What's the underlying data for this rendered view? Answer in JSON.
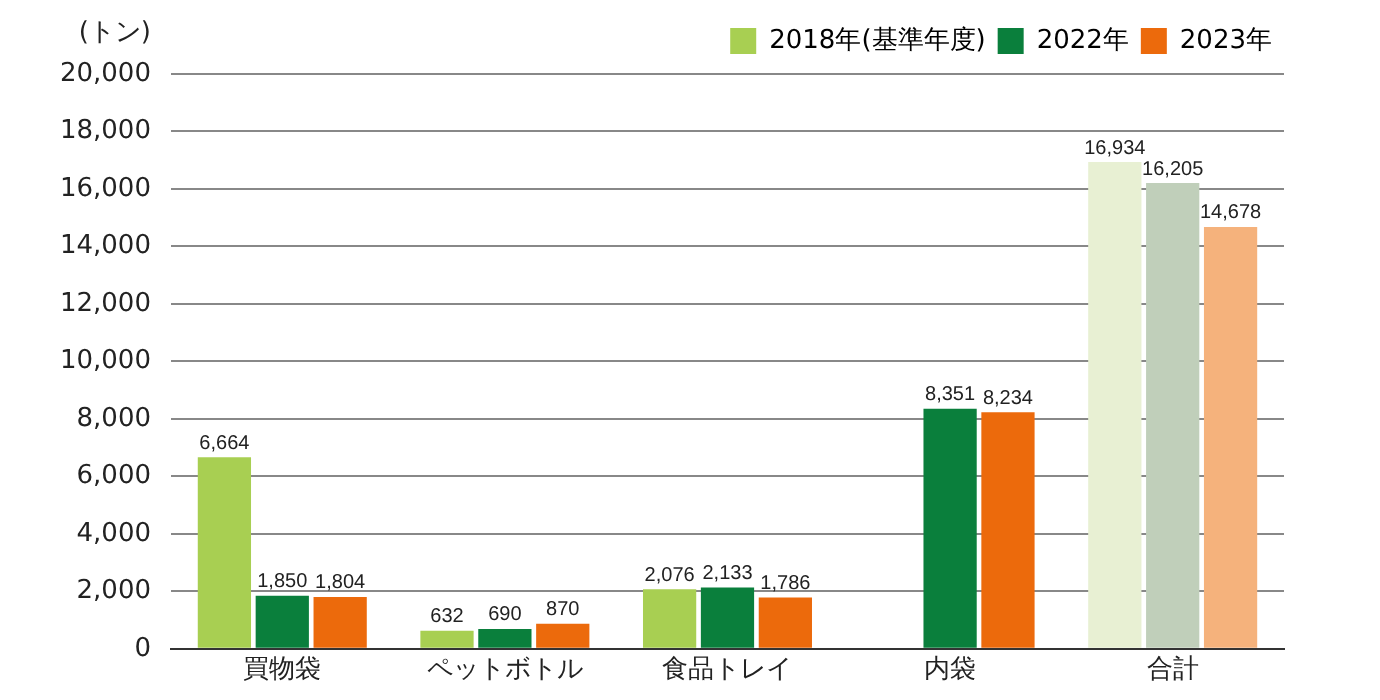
{
  "chart_data": {
    "type": "bar",
    "ylabel": "(トン)",
    "categories": [
      "買物袋",
      "ペットボトル",
      "食品トレイ",
      "内袋",
      "合計"
    ],
    "series": [
      {
        "name": "2018年(基準年度)",
        "color": "#a8cf52",
        "colors": [
          "#a8cf52",
          "#a8cf52",
          "#a8cf52",
          "#a8cf52",
          "#e8f0d3"
        ],
        "values": [
          6664,
          632,
          2076,
          null,
          16934
        ],
        "value_labels": [
          "6,664",
          "632",
          "2,076",
          null,
          "16,934"
        ]
      },
      {
        "name": "2022年",
        "color": "#0a7f3c",
        "colors": [
          "#0a7f3c",
          "#0a7f3c",
          "#0a7f3c",
          "#0a7f3c",
          "#c0cfba"
        ],
        "values": [
          1850,
          690,
          2133,
          8351,
          16205
        ],
        "value_labels": [
          "1,850",
          "690",
          "2,133",
          "8,351",
          "16,205"
        ]
      },
      {
        "name": "2023年",
        "color": "#ec6a0c",
        "colors": [
          "#ec6a0c",
          "#ec6a0c",
          "#ec6a0c",
          "#ec6a0c",
          "#f5b27c"
        ],
        "values": [
          1804,
          870,
          1786,
          8234,
          14678
        ],
        "value_labels": [
          "1,804",
          "870",
          "1,786",
          "8,234",
          "14,678"
        ]
      }
    ],
    "ylim": [
      0,
      20000
    ],
    "yticks": [
      0,
      {
        "value": 2000,
        "label": "2,000"
      },
      {
        "value": 4000,
        "label": "4,000"
      },
      {
        "value": 6000,
        "label": "6,000"
      },
      {
        "value": 8000,
        "label": "8,000"
      },
      {
        "value": 10000,
        "label": "10,000"
      },
      {
        "value": 12000,
        "label": "12,000"
      },
      {
        "value": 14000,
        "label": "14,000"
      },
      {
        "value": 16000,
        "label": "16,000"
      },
      {
        "value": 18000,
        "label": "18,000"
      },
      {
        "value": 20000,
        "label": "20,000"
      }
    ],
    "grid": "y",
    "legend": "top right"
  }
}
